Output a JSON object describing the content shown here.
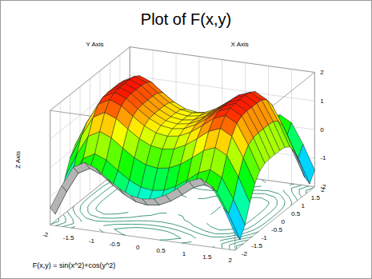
{
  "chart_data": {
    "type": "surface",
    "title": "Plot of F(x,y)",
    "annotation": "F(x,y) = sin(x^2)+cos(y^2)",
    "x_label": "X Axis",
    "y_label": "Y Axis",
    "z_label": "Z Axis",
    "x": [
      -2,
      -1.75,
      -1.5,
      -1.25,
      -1,
      -0.75,
      -0.5,
      -0.25,
      0,
      0.25,
      0.5,
      0.75,
      1,
      1.25,
      1.5,
      1.75,
      2
    ],
    "y": [
      -2,
      -1.75,
      -1.5,
      -1.25,
      -1,
      -0.75,
      -0.5,
      -0.25,
      0,
      0.25,
      0.5,
      0.75,
      1,
      1.25,
      1.5,
      1.75,
      2
    ],
    "z": [
      [
        -1.41,
        -0.57,
        0.13,
        0.35,
        0.19,
        -0.12,
        -0.4,
        -0.59,
        -0.65,
        -0.59,
        -0.4,
        -0.12,
        0.19,
        0.35,
        0.13,
        -0.57,
        -1.41
      ],
      [
        -1.76,
        -0.92,
        -0.22,
        0.0,
        -0.16,
        -0.47,
        -0.75,
        -0.94,
        -1.0,
        -0.94,
        -0.75,
        -0.47,
        -0.16,
        0.0,
        -0.22,
        -0.92,
        -1.76
      ],
      [
        -1.39,
        -0.55,
        0.15,
        0.37,
        0.21,
        -0.1,
        -0.38,
        -0.57,
        -0.63,
        -0.57,
        -0.38,
        -0.1,
        0.21,
        0.37,
        0.15,
        -0.55,
        -1.39
      ],
      [
        -0.75,
        0.09,
        0.79,
        1.01,
        0.85,
        0.54,
        0.26,
        0.07,
        0.01,
        0.07,
        0.26,
        0.54,
        0.85,
        1.01,
        0.79,
        0.09,
        -0.75
      ],
      [
        -0.22,
        0.62,
        1.32,
        1.54,
        1.38,
        1.07,
        0.79,
        0.6,
        0.54,
        0.6,
        0.79,
        1.07,
        1.38,
        1.54,
        1.32,
        0.62,
        -0.22
      ],
      [
        0.09,
        0.93,
        1.63,
        1.85,
        1.69,
        1.38,
        1.1,
        0.91,
        0.85,
        0.91,
        1.1,
        1.38,
        1.69,
        1.85,
        1.63,
        0.93,
        0.09
      ],
      [
        0.21,
        1.05,
        1.75,
        1.97,
        1.81,
        1.5,
        1.22,
        1.03,
        0.97,
        1.03,
        1.22,
        1.5,
        1.81,
        1.97,
        1.75,
        1.05,
        0.21
      ],
      [
        0.24,
        1.08,
        1.78,
        2.0,
        1.84,
        1.53,
        1.25,
        1.06,
        1.0,
        1.06,
        1.25,
        1.53,
        1.84,
        2.0,
        1.78,
        1.08,
        0.24
      ],
      [
        0.24,
        1.08,
        1.78,
        2.0,
        1.84,
        1.53,
        1.25,
        1.06,
        1.0,
        1.06,
        1.25,
        1.53,
        1.84,
        2.0,
        1.78,
        1.08,
        0.24
      ],
      [
        0.24,
        1.08,
        1.78,
        2.0,
        1.84,
        1.53,
        1.25,
        1.06,
        1.0,
        1.06,
        1.25,
        1.53,
        1.84,
        2.0,
        1.78,
        1.08,
        0.24
      ],
      [
        0.21,
        1.05,
        1.75,
        1.97,
        1.81,
        1.5,
        1.22,
        1.03,
        0.97,
        1.03,
        1.22,
        1.5,
        1.81,
        1.97,
        1.75,
        1.05,
        0.21
      ],
      [
        0.09,
        0.93,
        1.63,
        1.85,
        1.69,
        1.38,
        1.1,
        0.91,
        0.85,
        0.91,
        1.1,
        1.38,
        1.69,
        1.85,
        1.63,
        0.93,
        0.09
      ],
      [
        -0.22,
        0.62,
        1.32,
        1.54,
        1.38,
        1.07,
        0.79,
        0.6,
        0.54,
        0.6,
        0.79,
        1.07,
        1.38,
        1.54,
        1.32,
        0.62,
        -0.22
      ],
      [
        -0.75,
        0.09,
        0.79,
        1.01,
        0.85,
        0.54,
        0.26,
        0.07,
        0.01,
        0.07,
        0.26,
        0.54,
        0.85,
        1.01,
        0.79,
        0.09,
        -0.75
      ],
      [
        -1.39,
        -0.55,
        0.15,
        0.37,
        0.21,
        -0.1,
        -0.38,
        -0.57,
        -0.63,
        -0.57,
        -0.38,
        -0.1,
        0.21,
        0.37,
        0.15,
        -0.55,
        -1.39
      ],
      [
        -1.76,
        -0.92,
        -0.22,
        0.0,
        -0.16,
        -0.47,
        -0.75,
        -0.94,
        -1.0,
        -0.94,
        -0.75,
        -0.47,
        -0.16,
        0.0,
        -0.22,
        -0.92,
        -1.76
      ],
      [
        -1.41,
        -0.57,
        0.13,
        0.35,
        0.19,
        -0.12,
        -0.4,
        -0.59,
        -0.65,
        -0.59,
        -0.4,
        -0.12,
        0.19,
        0.35,
        0.13,
        -0.57,
        -1.41
      ]
    ],
    "xlim": [
      -2,
      2
    ],
    "ylim": [
      -2,
      2
    ],
    "zlim": [
      -2,
      2
    ],
    "xticks": [
      -2,
      -1.5,
      -1,
      -0.5,
      0,
      0.5,
      1,
      1.5,
      2
    ],
    "yticks": [
      -2,
      -1.5,
      -1,
      -0.5,
      0,
      0.5,
      1,
      1.5,
      2
    ],
    "zticks": [
      -2,
      -1,
      0,
      1,
      2
    ],
    "grid": true
  }
}
